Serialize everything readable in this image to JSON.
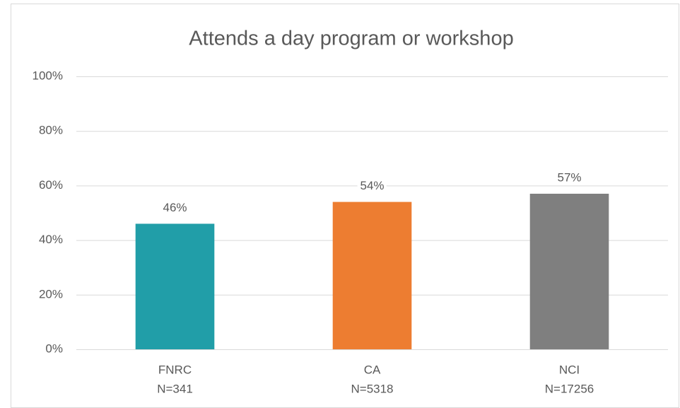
{
  "chart_data": {
    "type": "bar",
    "title": "Attends a day program or workshop",
    "categories": [
      [
        "FNRC",
        "N=341"
      ],
      [
        "CA",
        "N=5318"
      ],
      [
        "NCI",
        "N=17256"
      ]
    ],
    "values": [
      46,
      54,
      57
    ],
    "value_labels": [
      "46%",
      "54%",
      "57%"
    ],
    "colors": [
      "#219ea8",
      "#ed7d31",
      "#7f7f7f"
    ],
    "ylim": [
      0,
      100
    ],
    "yticks": [
      {
        "value": 0,
        "label": "0%"
      },
      {
        "value": 20,
        "label": "20%"
      },
      {
        "value": 40,
        "label": "40%"
      },
      {
        "value": 60,
        "label": "60%"
      },
      {
        "value": 80,
        "label": "80%"
      },
      {
        "value": 100,
        "label": "100%"
      }
    ],
    "grid": true
  }
}
